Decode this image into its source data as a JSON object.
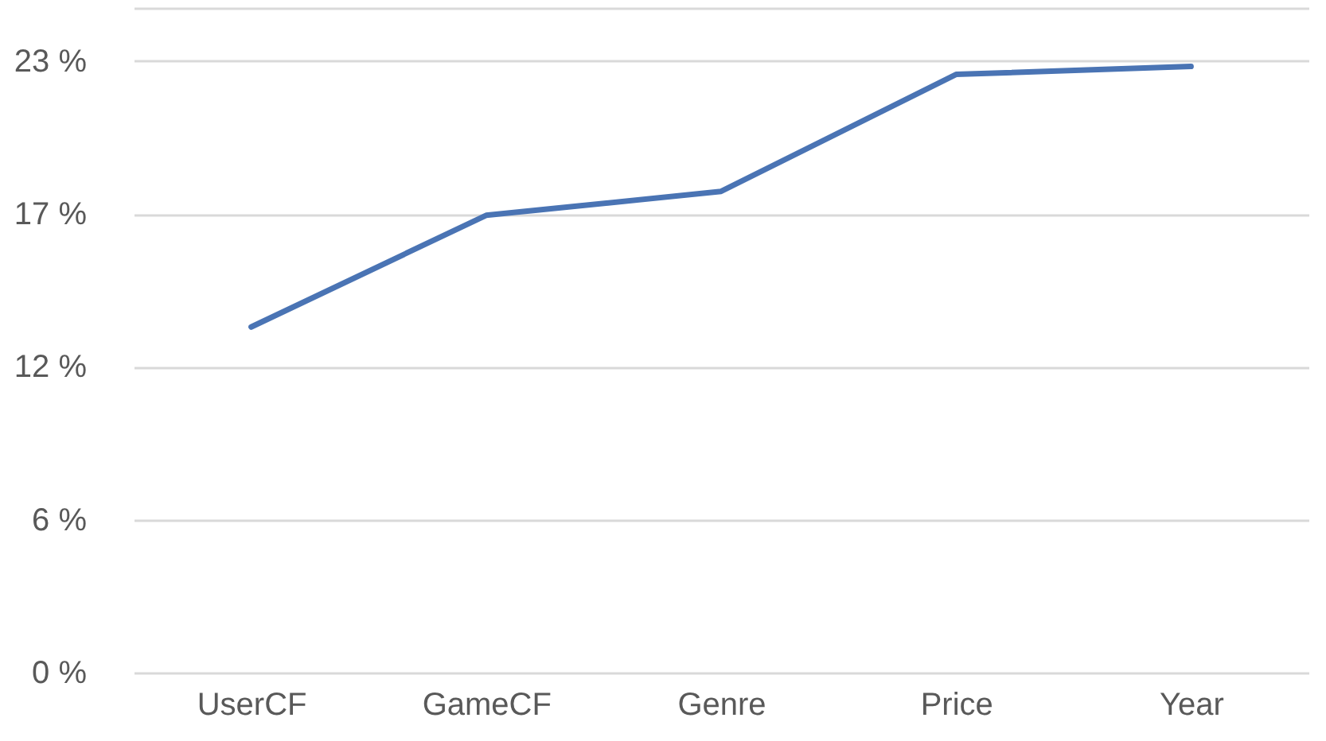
{
  "chart_data": {
    "type": "line",
    "categories": [
      "UserCF",
      "GameCF",
      "Genre",
      "Price",
      "Year"
    ],
    "series": [
      {
        "color": "#4a74b4",
        "values": [
          13.0,
          17.2,
          18.1,
          22.5,
          22.8
        ]
      }
    ],
    "ylim": [
      0,
      25
    ],
    "yticks": [
      {
        "value": 0,
        "label": "0 %"
      },
      {
        "value": 5.75,
        "label": "6 %"
      },
      {
        "value": 11.5,
        "label": "12 %"
      },
      {
        "value": 17.25,
        "label": "17 %"
      },
      {
        "value": 23,
        "label": "23 %"
      },
      {
        "value": 25,
        "label": null
      }
    ],
    "grid": "y",
    "legend": false,
    "marker": "none"
  }
}
